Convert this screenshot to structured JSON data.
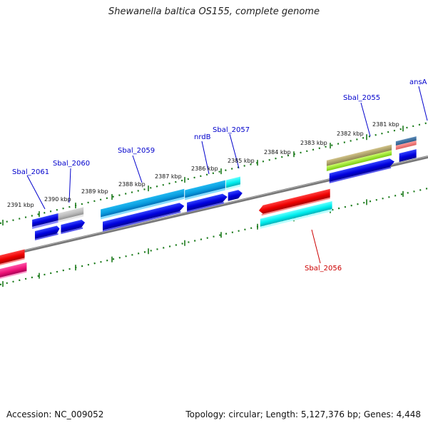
{
  "title": "Shewanella baltica OS155, complete genome",
  "accession": "Accession: NC_009052",
  "summary": "Topology: circular; Length: 5,127,376 bp; Genes: 4,448",
  "colors": {
    "label_blue": "#0000cc",
    "label_red": "#cc0000",
    "tick_green": "#1a7a1a",
    "backbone": "#777777"
  },
  "kbp_ticks": [
    {
      "label": "2391 kbp"
    },
    {
      "label": "2390 kbp"
    },
    {
      "label": "2389 kbp"
    },
    {
      "label": "2388 kbp"
    },
    {
      "label": "2387 kbp"
    },
    {
      "label": "2386 kbp"
    },
    {
      "label": "2385 kbp"
    },
    {
      "label": "2384 kbp"
    },
    {
      "label": "2383 kbp"
    },
    {
      "label": "2382 kbp"
    },
    {
      "label": "2381 kbp"
    }
  ],
  "gene_labels": [
    {
      "name": "Sbal_2061",
      "color": "#0000cc"
    },
    {
      "name": "Sbal_2060",
      "color": "#0000cc"
    },
    {
      "name": "Sbal_2059",
      "color": "#0000cc"
    },
    {
      "name": "nrdB",
      "color": "#0000cc"
    },
    {
      "name": "Sbal_2057",
      "color": "#0000cc"
    },
    {
      "name": "Sbal_2055",
      "color": "#0000cc"
    },
    {
      "name": "ansA",
      "color": "#0000cc"
    },
    {
      "name": "Sbal_2056",
      "color": "#cc0000"
    }
  ]
}
